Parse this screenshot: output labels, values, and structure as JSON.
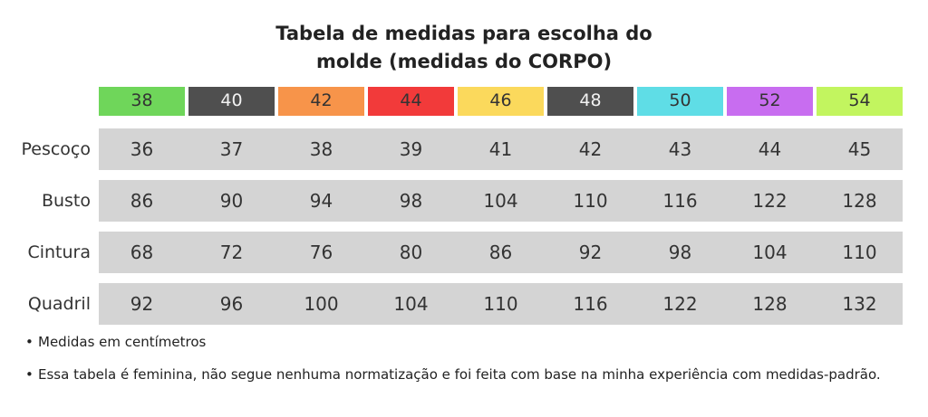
{
  "title": {
    "line1": "Tabela de medidas para escolha do",
    "line2": "molde (medidas do CORPO)"
  },
  "sizes": [
    {
      "label": "38",
      "color": "#6fd65a",
      "text_color": "#333333"
    },
    {
      "label": "40",
      "color": "#4f4f4f",
      "text_color": "#f2f2f2"
    },
    {
      "label": "42",
      "color": "#f7944a",
      "text_color": "#333333"
    },
    {
      "label": "44",
      "color": "#f23a3a",
      "text_color": "#333333"
    },
    {
      "label": "46",
      "color": "#fbd95c",
      "text_color": "#333333"
    },
    {
      "label": "48",
      "color": "#4f4f4f",
      "text_color": "#f2f2f2"
    },
    {
      "label": "50",
      "color": "#5fdde6",
      "text_color": "#333333"
    },
    {
      "label": "52",
      "color": "#c86df0",
      "text_color": "#333333"
    },
    {
      "label": "54",
      "color": "#c2f55f",
      "text_color": "#333333"
    }
  ],
  "rows": [
    {
      "label": "Pescoço",
      "values": [
        "36",
        "37",
        "38",
        "39",
        "41",
        "42",
        "43",
        "44",
        "45"
      ]
    },
    {
      "label": "Busto",
      "values": [
        "86",
        "90",
        "94",
        "98",
        "104",
        "110",
        "116",
        "122",
        "128"
      ]
    },
    {
      "label": "Cintura",
      "values": [
        "68",
        "72",
        "76",
        "80",
        "86",
        "92",
        "98",
        "104",
        "110"
      ]
    },
    {
      "label": "Quadril",
      "values": [
        "92",
        "96",
        "100",
        "104",
        "110",
        "116",
        "122",
        "128",
        "132"
      ]
    }
  ],
  "notes": {
    "bullet": "•",
    "note1": "Medidas em centímetros",
    "note2": "Essa tabela é feminina, não segue nenhuma normatização e foi feita com base na minha experiência com medidas-padrão."
  }
}
